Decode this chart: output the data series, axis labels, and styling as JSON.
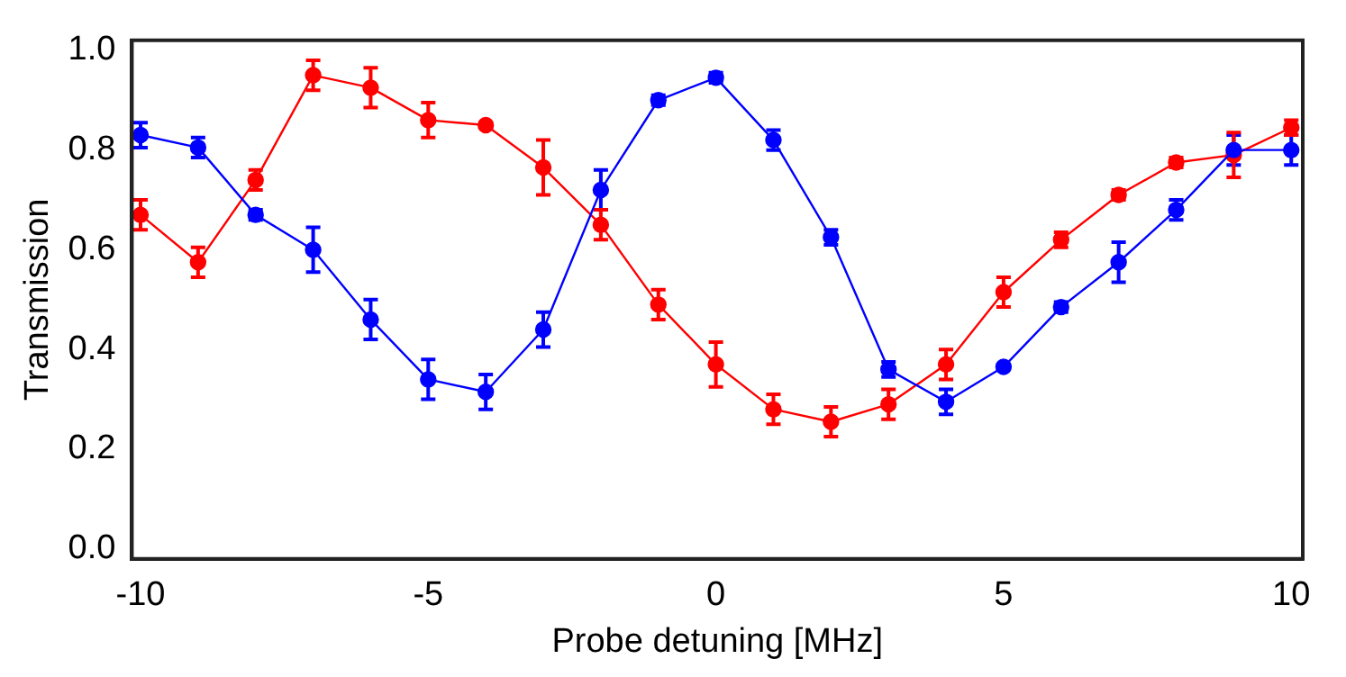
{
  "chart_data": {
    "type": "line",
    "xlabel": "Probe detuning [MHz]",
    "ylabel": "Transmission",
    "x": [
      -10,
      -9,
      -8,
      -7,
      -6,
      -5,
      -4,
      -3,
      -2,
      -1,
      0,
      1,
      2,
      3,
      4,
      5,
      6,
      7,
      8,
      9,
      10
    ],
    "series": [
      {
        "color": "#0000ff",
        "values": [
          0.83,
          0.805,
          0.67,
          0.6,
          0.46,
          0.34,
          0.315,
          0.44,
          0.72,
          0.9,
          0.945,
          0.82,
          0.625,
          0.36,
          0.295,
          0.365,
          0.485,
          0.575,
          0.68,
          0.8,
          0.8
        ],
        "errors": [
          0.025,
          0.02,
          0.01,
          0.045,
          0.04,
          0.04,
          0.035,
          0.035,
          0.04,
          0.01,
          0.01,
          0.02,
          0.015,
          0.015,
          0.025,
          0.005,
          0.01,
          0.04,
          0.02,
          0.03,
          0.03
        ]
      },
      {
        "color": "#ff0000",
        "values": [
          0.67,
          0.575,
          0.74,
          0.95,
          0.925,
          0.86,
          0.85,
          0.765,
          0.65,
          0.49,
          0.37,
          0.28,
          0.255,
          0.29,
          0.37,
          0.515,
          0.62,
          0.71,
          0.775,
          0.79,
          0.845
        ],
        "errors": [
          0.03,
          0.03,
          0.02,
          0.03,
          0.04,
          0.035,
          0.005,
          0.055,
          0.03,
          0.03,
          0.045,
          0.03,
          0.03,
          0.03,
          0.03,
          0.03,
          0.015,
          0.01,
          0.01,
          0.045,
          0.015
        ]
      }
    ],
    "xlim": [
      -10.15,
      10.2
    ],
    "ylim": [
      -0.02,
      1.02
    ],
    "xticks": [
      {
        "value": -10,
        "label": "-10"
      },
      {
        "value": -5,
        "label": "-5"
      },
      0,
      5,
      10
    ],
    "yticks": [
      {
        "value": 0,
        "label": "0.0"
      },
      {
        "value": 0.2,
        "label": "0.2"
      },
      {
        "value": 0.4,
        "label": "0.4"
      },
      {
        "value": 0.6,
        "label": "0.6"
      },
      {
        "value": 0.8,
        "label": "0.8"
      },
      {
        "value": 1,
        "label": "1.0"
      }
    ],
    "grid": false,
    "legend": false,
    "marker": "circle",
    "line_style": "solid"
  }
}
